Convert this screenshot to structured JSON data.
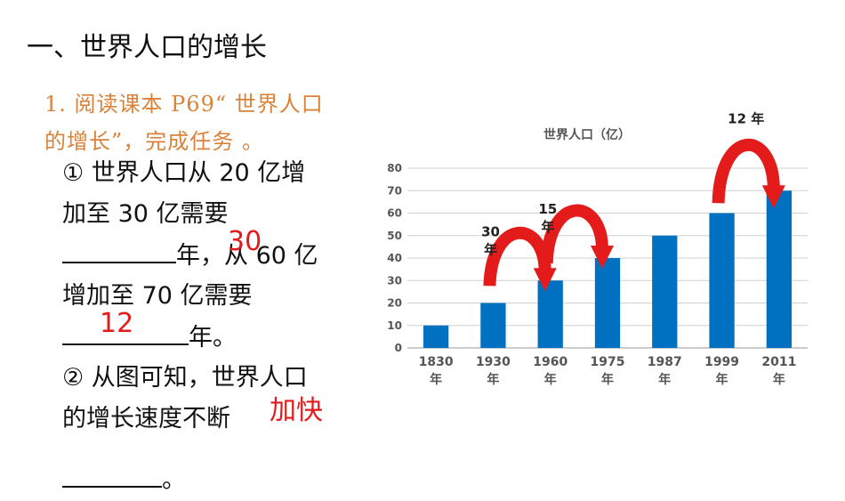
{
  "slide": {
    "title": "一、世界人口的增长",
    "task": "1. 阅读课本 P69“ 世界人口的增长”，完成任务 。",
    "q1_line1": "① 世界人口从 20 亿增",
    "q1_line2": "加至 30 亿需要",
    "q1_line3_end": "年，从 60 亿",
    "q1_line4": "增加至 70 亿需要",
    "q1_line5_end": "年。",
    "q2_line1": "② 从图可知，世界人口",
    "q2_line2": "的增长速度不断",
    "q2_line3_end": "。",
    "answers": {
      "a1": "30",
      "a2": "12",
      "a3": "加快"
    }
  },
  "chart_data": {
    "type": "bar",
    "title": "世界人口（亿）",
    "categories": [
      "1830年",
      "1930年",
      "1960年",
      "1975年",
      "1987年",
      "1999年",
      "2011年"
    ],
    "values": [
      10,
      20,
      30,
      40,
      50,
      60,
      70
    ],
    "ylim": [
      0,
      80
    ],
    "yticks": [
      0,
      10,
      20,
      30,
      40,
      50,
      60,
      70,
      80
    ],
    "grid": true,
    "bar_color": "#0070c0",
    "arrow_color": "#e31b1b",
    "annotations": [
      {
        "text": "30年",
        "from": "1930年",
        "to": "1960年"
      },
      {
        "text": "15年",
        "from": "1960年",
        "to": "1975年"
      },
      {
        "text": "12年",
        "from": "1999年",
        "to": "2011年"
      }
    ]
  }
}
